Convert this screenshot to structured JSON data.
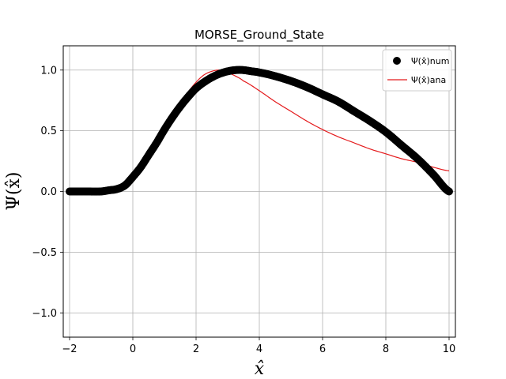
{
  "chart_data": {
    "type": "scatter",
    "title": "MORSE_Ground_State",
    "xlabel": "x̂",
    "ylabel": "Ψ(x̂)",
    "xlim": [
      -2.2,
      10.2
    ],
    "ylim": [
      -1.2,
      1.2
    ],
    "xticks": [
      -2,
      0,
      2,
      4,
      6,
      8,
      10
    ],
    "yticks": [
      -1.0,
      -0.5,
      0.0,
      0.5,
      1.0
    ],
    "xtick_labels": [
      "−2",
      "0",
      "2",
      "4",
      "6",
      "8",
      "10"
    ],
    "ytick_labels": [
      "−1.0",
      "−0.5",
      "0.0",
      "0.5",
      "1.0"
    ],
    "grid": true,
    "legend_position": "top-right",
    "series": [
      {
        "name": "Ψ(x̂)num",
        "kind": "scatter",
        "color": "#000000",
        "points": [
          [
            -2.0,
            0.0
          ],
          [
            -1.5,
            0.0
          ],
          [
            -1.0,
            0.0
          ],
          [
            -0.75,
            0.01
          ],
          [
            -0.5,
            0.02
          ],
          [
            -0.25,
            0.05
          ],
          [
            0.0,
            0.12
          ],
          [
            0.25,
            0.2
          ],
          [
            0.5,
            0.3
          ],
          [
            0.75,
            0.4
          ],
          [
            1.0,
            0.51
          ],
          [
            1.25,
            0.61
          ],
          [
            1.5,
            0.7
          ],
          [
            1.75,
            0.78
          ],
          [
            2.0,
            0.85
          ],
          [
            2.25,
            0.9
          ],
          [
            2.5,
            0.94
          ],
          [
            2.75,
            0.97
          ],
          [
            3.0,
            0.99
          ],
          [
            3.25,
            1.0
          ],
          [
            3.5,
            1.0
          ],
          [
            3.75,
            0.99
          ],
          [
            4.0,
            0.98
          ],
          [
            4.5,
            0.95
          ],
          [
            5.0,
            0.91
          ],
          [
            5.5,
            0.86
          ],
          [
            6.0,
            0.8
          ],
          [
            6.5,
            0.74
          ],
          [
            7.0,
            0.66
          ],
          [
            7.5,
            0.58
          ],
          [
            8.0,
            0.49
          ],
          [
            8.5,
            0.38
          ],
          [
            9.0,
            0.27
          ],
          [
            9.5,
            0.14
          ],
          [
            10.0,
            0.0
          ]
        ]
      },
      {
        "name": "Ψ(x̂)ana",
        "kind": "line",
        "color": "#e41a1c",
        "points": [
          [
            -2.0,
            0.0
          ],
          [
            -1.5,
            0.0
          ],
          [
            -1.0,
            0.0
          ],
          [
            -0.75,
            0.0
          ],
          [
            -0.5,
            0.01
          ],
          [
            -0.25,
            0.03
          ],
          [
            0.0,
            0.08
          ],
          [
            0.25,
            0.16
          ],
          [
            0.5,
            0.26
          ],
          [
            0.75,
            0.38
          ],
          [
            1.0,
            0.5
          ],
          [
            1.25,
            0.62
          ],
          [
            1.5,
            0.73
          ],
          [
            1.75,
            0.82
          ],
          [
            2.0,
            0.9
          ],
          [
            2.25,
            0.96
          ],
          [
            2.5,
            0.99
          ],
          [
            2.75,
            1.0
          ],
          [
            3.0,
            0.98
          ],
          [
            3.25,
            0.95
          ],
          [
            3.5,
            0.91
          ],
          [
            4.0,
            0.83
          ],
          [
            4.5,
            0.74
          ],
          [
            5.0,
            0.66
          ],
          [
            5.5,
            0.58
          ],
          [
            6.0,
            0.51
          ],
          [
            6.5,
            0.45
          ],
          [
            7.0,
            0.4
          ],
          [
            7.5,
            0.35
          ],
          [
            8.0,
            0.31
          ],
          [
            8.5,
            0.27
          ],
          [
            9.0,
            0.24
          ],
          [
            9.5,
            0.2
          ],
          [
            10.0,
            0.17
          ]
        ]
      }
    ]
  }
}
